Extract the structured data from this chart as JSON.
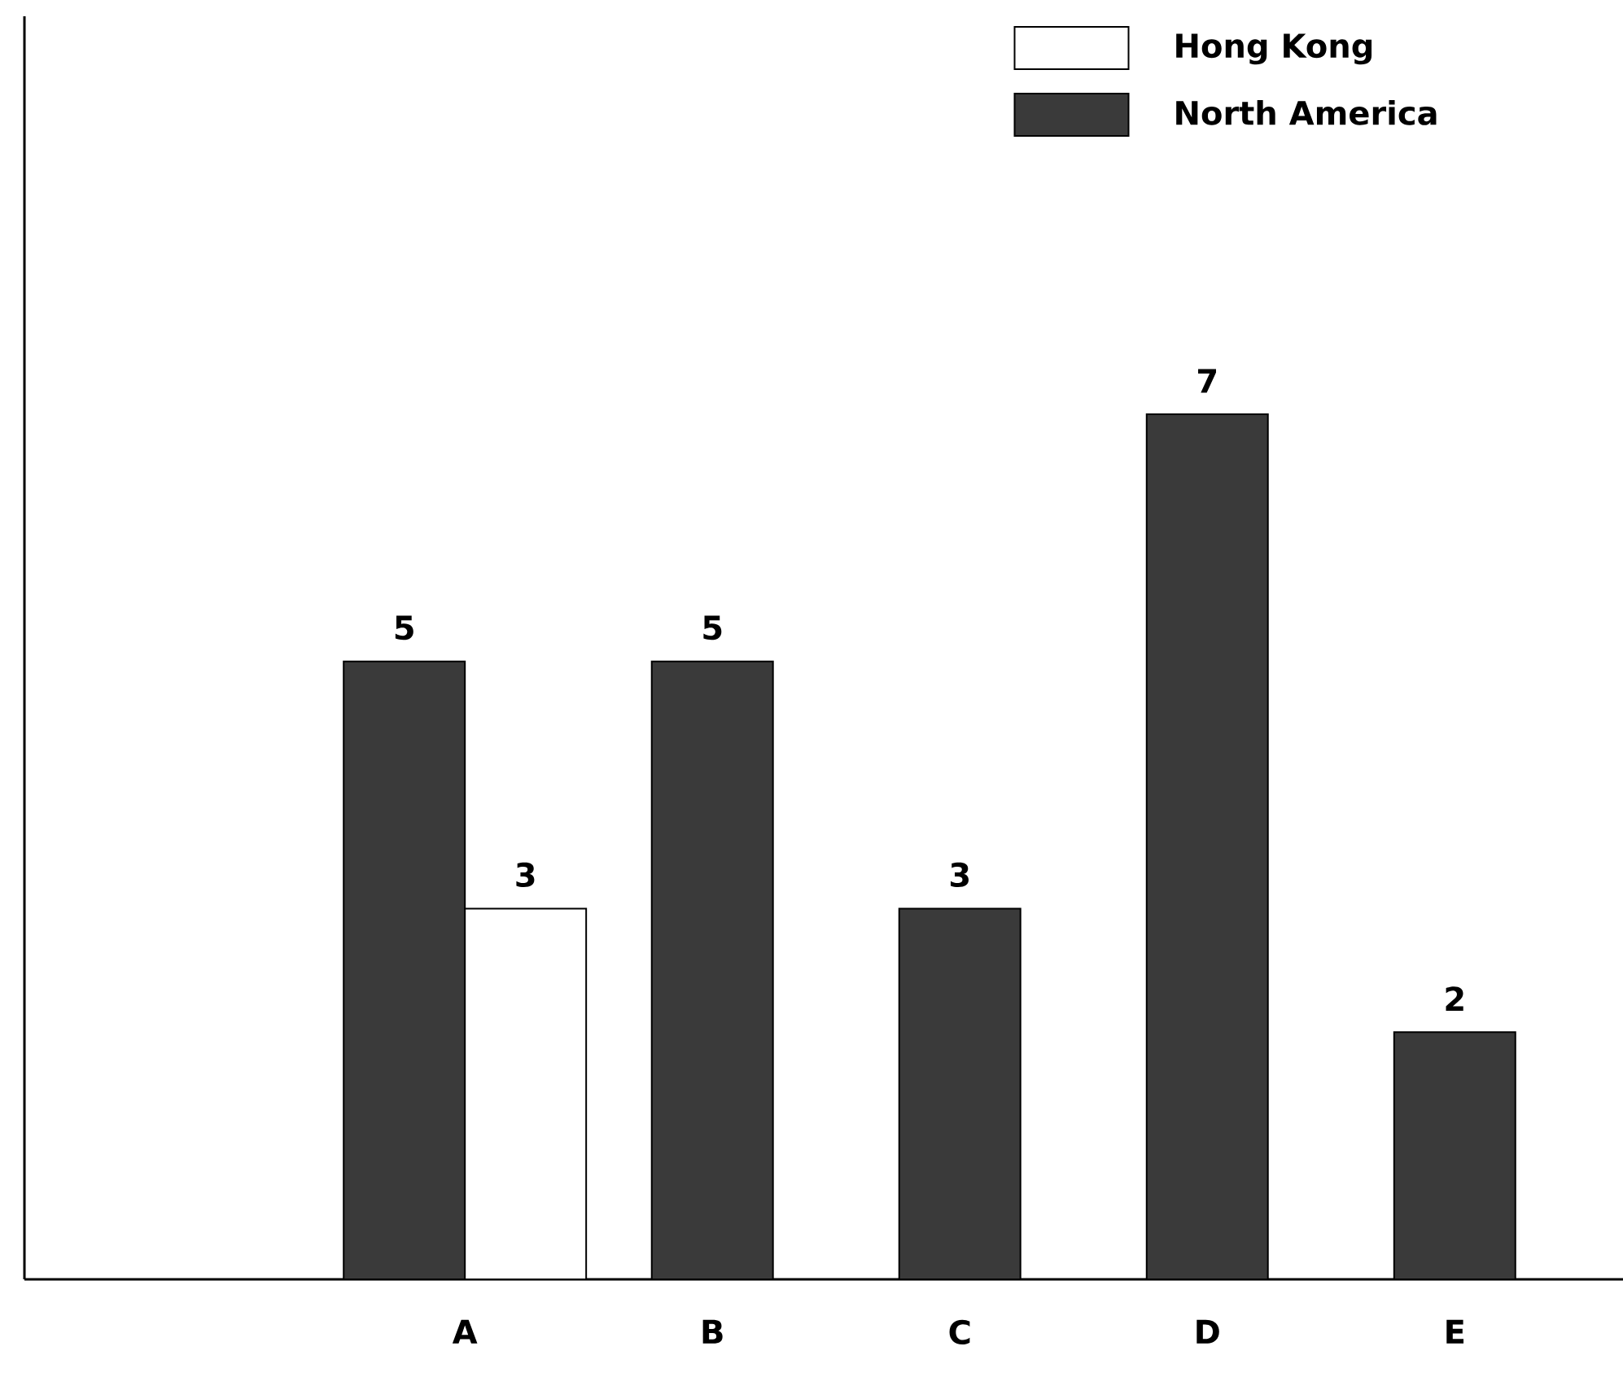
{
  "chart_data": {
    "type": "bar",
    "categories": [
      "A",
      "B",
      "C",
      "D",
      "E"
    ],
    "series": [
      {
        "name": "Hong Kong",
        "color": "#ffffff",
        "values": [
          3,
          null,
          null,
          null,
          null
        ]
      },
      {
        "name": "North America",
        "color": "#3a3a3a",
        "values": [
          5,
          5,
          3,
          7,
          2
        ]
      }
    ],
    "data_labels": true,
    "legend": "top right",
    "tick_labels": "x",
    "grid": false
  }
}
